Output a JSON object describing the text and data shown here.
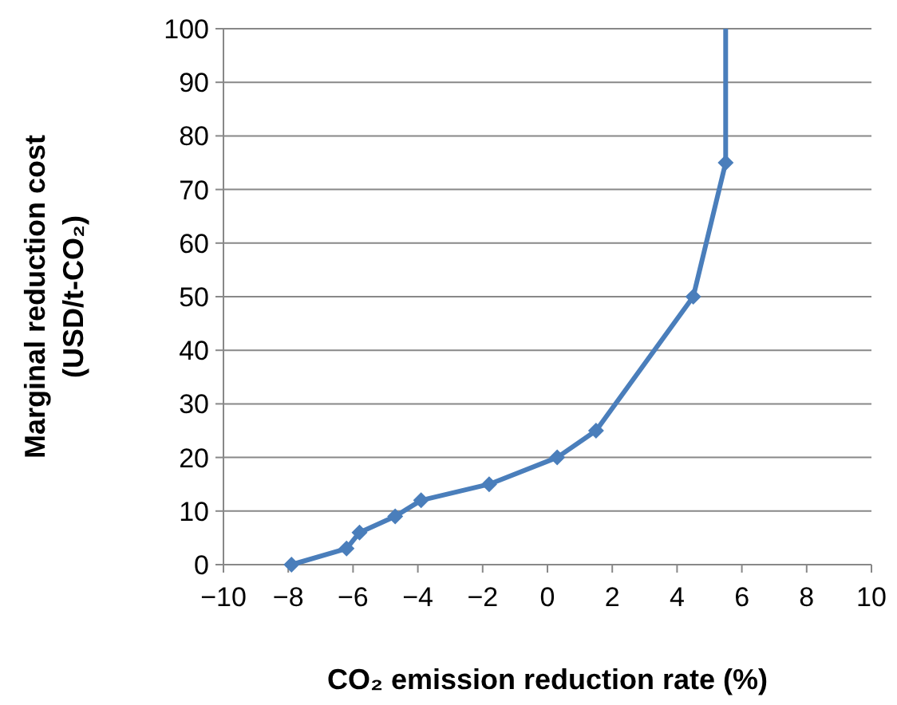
{
  "chart_data": {
    "type": "line",
    "xlabel": "CO₂ emission reduction rate (%)",
    "ylabel": "Marginal reduction cost\n(USD/t-CO₂)",
    "series": [
      {
        "color": "#4a7ebb",
        "marker": "diamond",
        "x": [
          -7.9,
          -6.2,
          -5.8,
          -4.7,
          -3.9,
          -1.8,
          0.3,
          1.5,
          4.5,
          5.5
        ],
        "values": [
          0,
          3,
          6,
          9,
          12,
          15,
          20,
          25,
          50,
          75
        ]
      },
      {
        "color": "#4a7ebb",
        "marker": "none",
        "x": [
          5.5,
          5.5
        ],
        "values": [
          75,
          100
        ]
      }
    ],
    "xlim": [
      -10,
      10
    ],
    "xticks": [
      {
        "value": -10,
        "label": "−10"
      },
      {
        "value": -8,
        "label": "−8"
      },
      {
        "value": -6,
        "label": "−6"
      },
      {
        "value": -4,
        "label": "−4"
      },
      {
        "value": -2,
        "label": "−2"
      },
      0,
      2,
      4,
      6,
      8,
      10
    ],
    "ylim": [
      0,
      100
    ],
    "yticks": [
      0,
      10,
      20,
      30,
      40,
      50,
      60,
      70,
      80,
      90,
      100
    ],
    "grid": "y",
    "line_style": "solid"
  }
}
